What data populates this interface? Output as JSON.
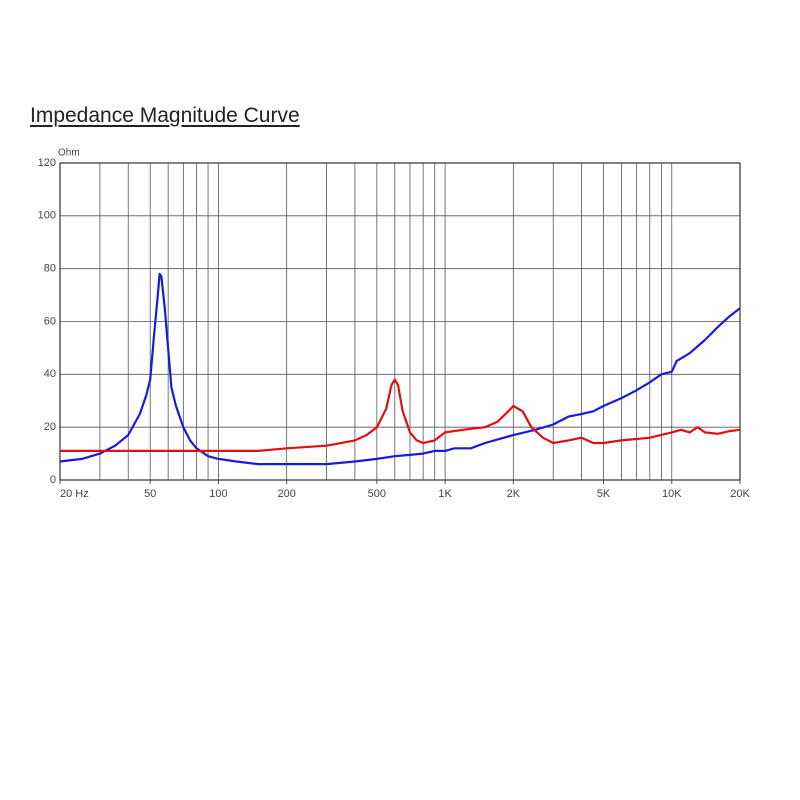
{
  "chart_data": {
    "type": "line",
    "title": "Impedance Magnitude Curve",
    "y_label": "Ohm",
    "x_log": true,
    "grid": true,
    "xlim": [
      20,
      20000
    ],
    "ylim": [
      0,
      120
    ],
    "yticks": [
      0,
      20,
      40,
      60,
      80,
      100,
      120
    ],
    "xticks": [
      {
        "value": 20,
        "label": "20 Hz"
      },
      50,
      100,
      200,
      500,
      {
        "value": 1000,
        "label": "1K"
      },
      {
        "value": 2000,
        "label": "2K"
      },
      {
        "value": 5000,
        "label": "5K"
      },
      {
        "value": 10000,
        "label": "10K"
      },
      {
        "value": 20000,
        "label": "20K"
      }
    ],
    "xgrid": [
      30,
      40,
      50,
      60,
      70,
      80,
      90,
      100,
      200,
      300,
      400,
      500,
      600,
      700,
      800,
      900,
      1000,
      2000,
      3000,
      4000,
      5000,
      6000,
      7000,
      8000,
      9000,
      10000
    ],
    "series": [
      {
        "color": "#1a1adc",
        "x": [
          20,
          25,
          30,
          35,
          40,
          45,
          48,
          50,
          52,
          54,
          55,
          56,
          58,
          60,
          62,
          65,
          70,
          75,
          80,
          90,
          100,
          120,
          150,
          200,
          300,
          400,
          500,
          600,
          700,
          800,
          900,
          1000,
          1100,
          1300,
          1500,
          2000,
          2500,
          3000,
          3500,
          4000,
          4500,
          5000,
          6000,
          7000,
          8000,
          9000,
          10000,
          10500,
          12000,
          14000,
          16000,
          18000,
          20000
        ],
        "values": [
          7,
          8,
          10,
          13,
          17,
          25,
          32,
          38,
          55,
          70,
          78,
          77,
          65,
          50,
          35,
          28,
          20,
          15,
          12,
          9,
          8,
          7,
          6,
          6,
          6,
          7,
          8,
          9,
          9.5,
          10,
          11,
          11,
          12,
          12,
          14,
          17,
          19,
          21,
          24,
          25,
          26,
          28,
          31,
          34,
          37,
          40,
          41,
          45,
          48,
          53,
          58,
          62,
          65
        ]
      },
      {
        "color": "#e01010",
        "x": [
          20,
          30,
          40,
          50,
          100,
          150,
          200,
          300,
          400,
          450,
          500,
          550,
          580,
          600,
          620,
          650,
          700,
          750,
          800,
          900,
          1000,
          1200,
          1500,
          1700,
          1900,
          2000,
          2200,
          2400,
          2700,
          3000,
          3500,
          4000,
          4500,
          5000,
          6000,
          8000,
          10000,
          11000,
          12000,
          13000,
          14000,
          16000,
          18000,
          20000
        ],
        "values": [
          11,
          11,
          11,
          11,
          11,
          11,
          12,
          13,
          15,
          17,
          20,
          27,
          36,
          38,
          36,
          26,
          18,
          15,
          14,
          15,
          18,
          19,
          20,
          22,
          26,
          28,
          26,
          20,
          16,
          14,
          15,
          16,
          14,
          14,
          15,
          16,
          18,
          19,
          18,
          20,
          18,
          17.5,
          18.5,
          19
        ]
      }
    ]
  }
}
